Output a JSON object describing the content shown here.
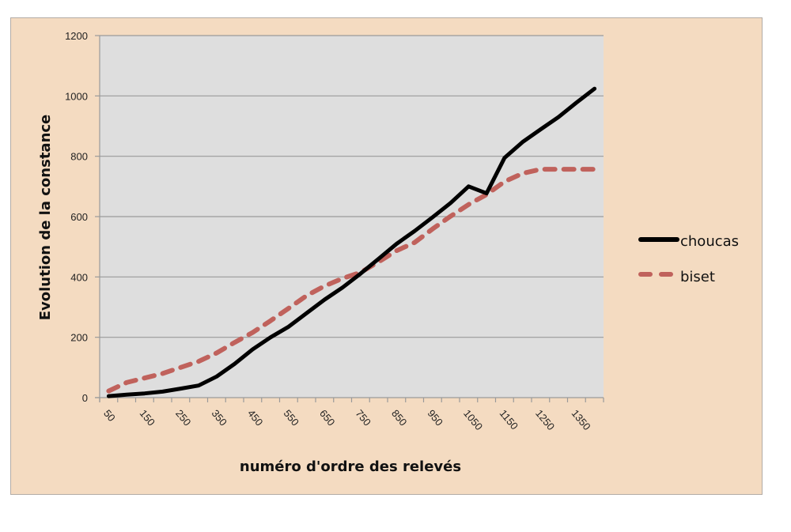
{
  "chart_data": {
    "type": "line",
    "title": "",
    "xlabel": "numéro d'ordre des relevés",
    "ylabel": "Evolution de la constance",
    "ylim": [
      0,
      1200
    ],
    "yticks": [
      0,
      200,
      400,
      600,
      800,
      1000,
      1200
    ],
    "grid": true,
    "legend_position": "right",
    "categories": [
      50,
      100,
      150,
      200,
      250,
      300,
      350,
      400,
      450,
      500,
      550,
      600,
      650,
      700,
      750,
      800,
      850,
      900,
      950,
      1000,
      1050,
      1100,
      1150,
      1200,
      1250,
      1300,
      1350,
      1400
    ],
    "x_tick_labels_shown": [
      "50",
      "150",
      "250",
      "350",
      "450",
      "550",
      "650",
      "750",
      "850",
      "950",
      "1050",
      "1150",
      "1250",
      "1350"
    ],
    "series": [
      {
        "name": "choucas",
        "color": "#000000",
        "style": "solid",
        "values": [
          5,
          10,
          14,
          20,
          30,
          40,
          70,
          112,
          160,
          200,
          235,
          280,
          325,
          365,
          411,
          460,
          510,
          552,
          598,
          645,
          700,
          677,
          795,
          847,
          889,
          930,
          978,
          1024
        ]
      },
      {
        "name": "biset",
        "color": "#c0625c",
        "style": "dashed",
        "values": [
          22,
          50,
          65,
          80,
          100,
          120,
          148,
          183,
          216,
          255,
          296,
          338,
          370,
          395,
          415,
          450,
          487,
          514,
          559,
          601,
          640,
          673,
          716,
          743,
          757,
          757,
          757,
          757
        ]
      }
    ]
  },
  "colors": {
    "frame_background": "#f4dbc1",
    "plot_background": "#dedede",
    "gridline": "#9a9a9a"
  }
}
